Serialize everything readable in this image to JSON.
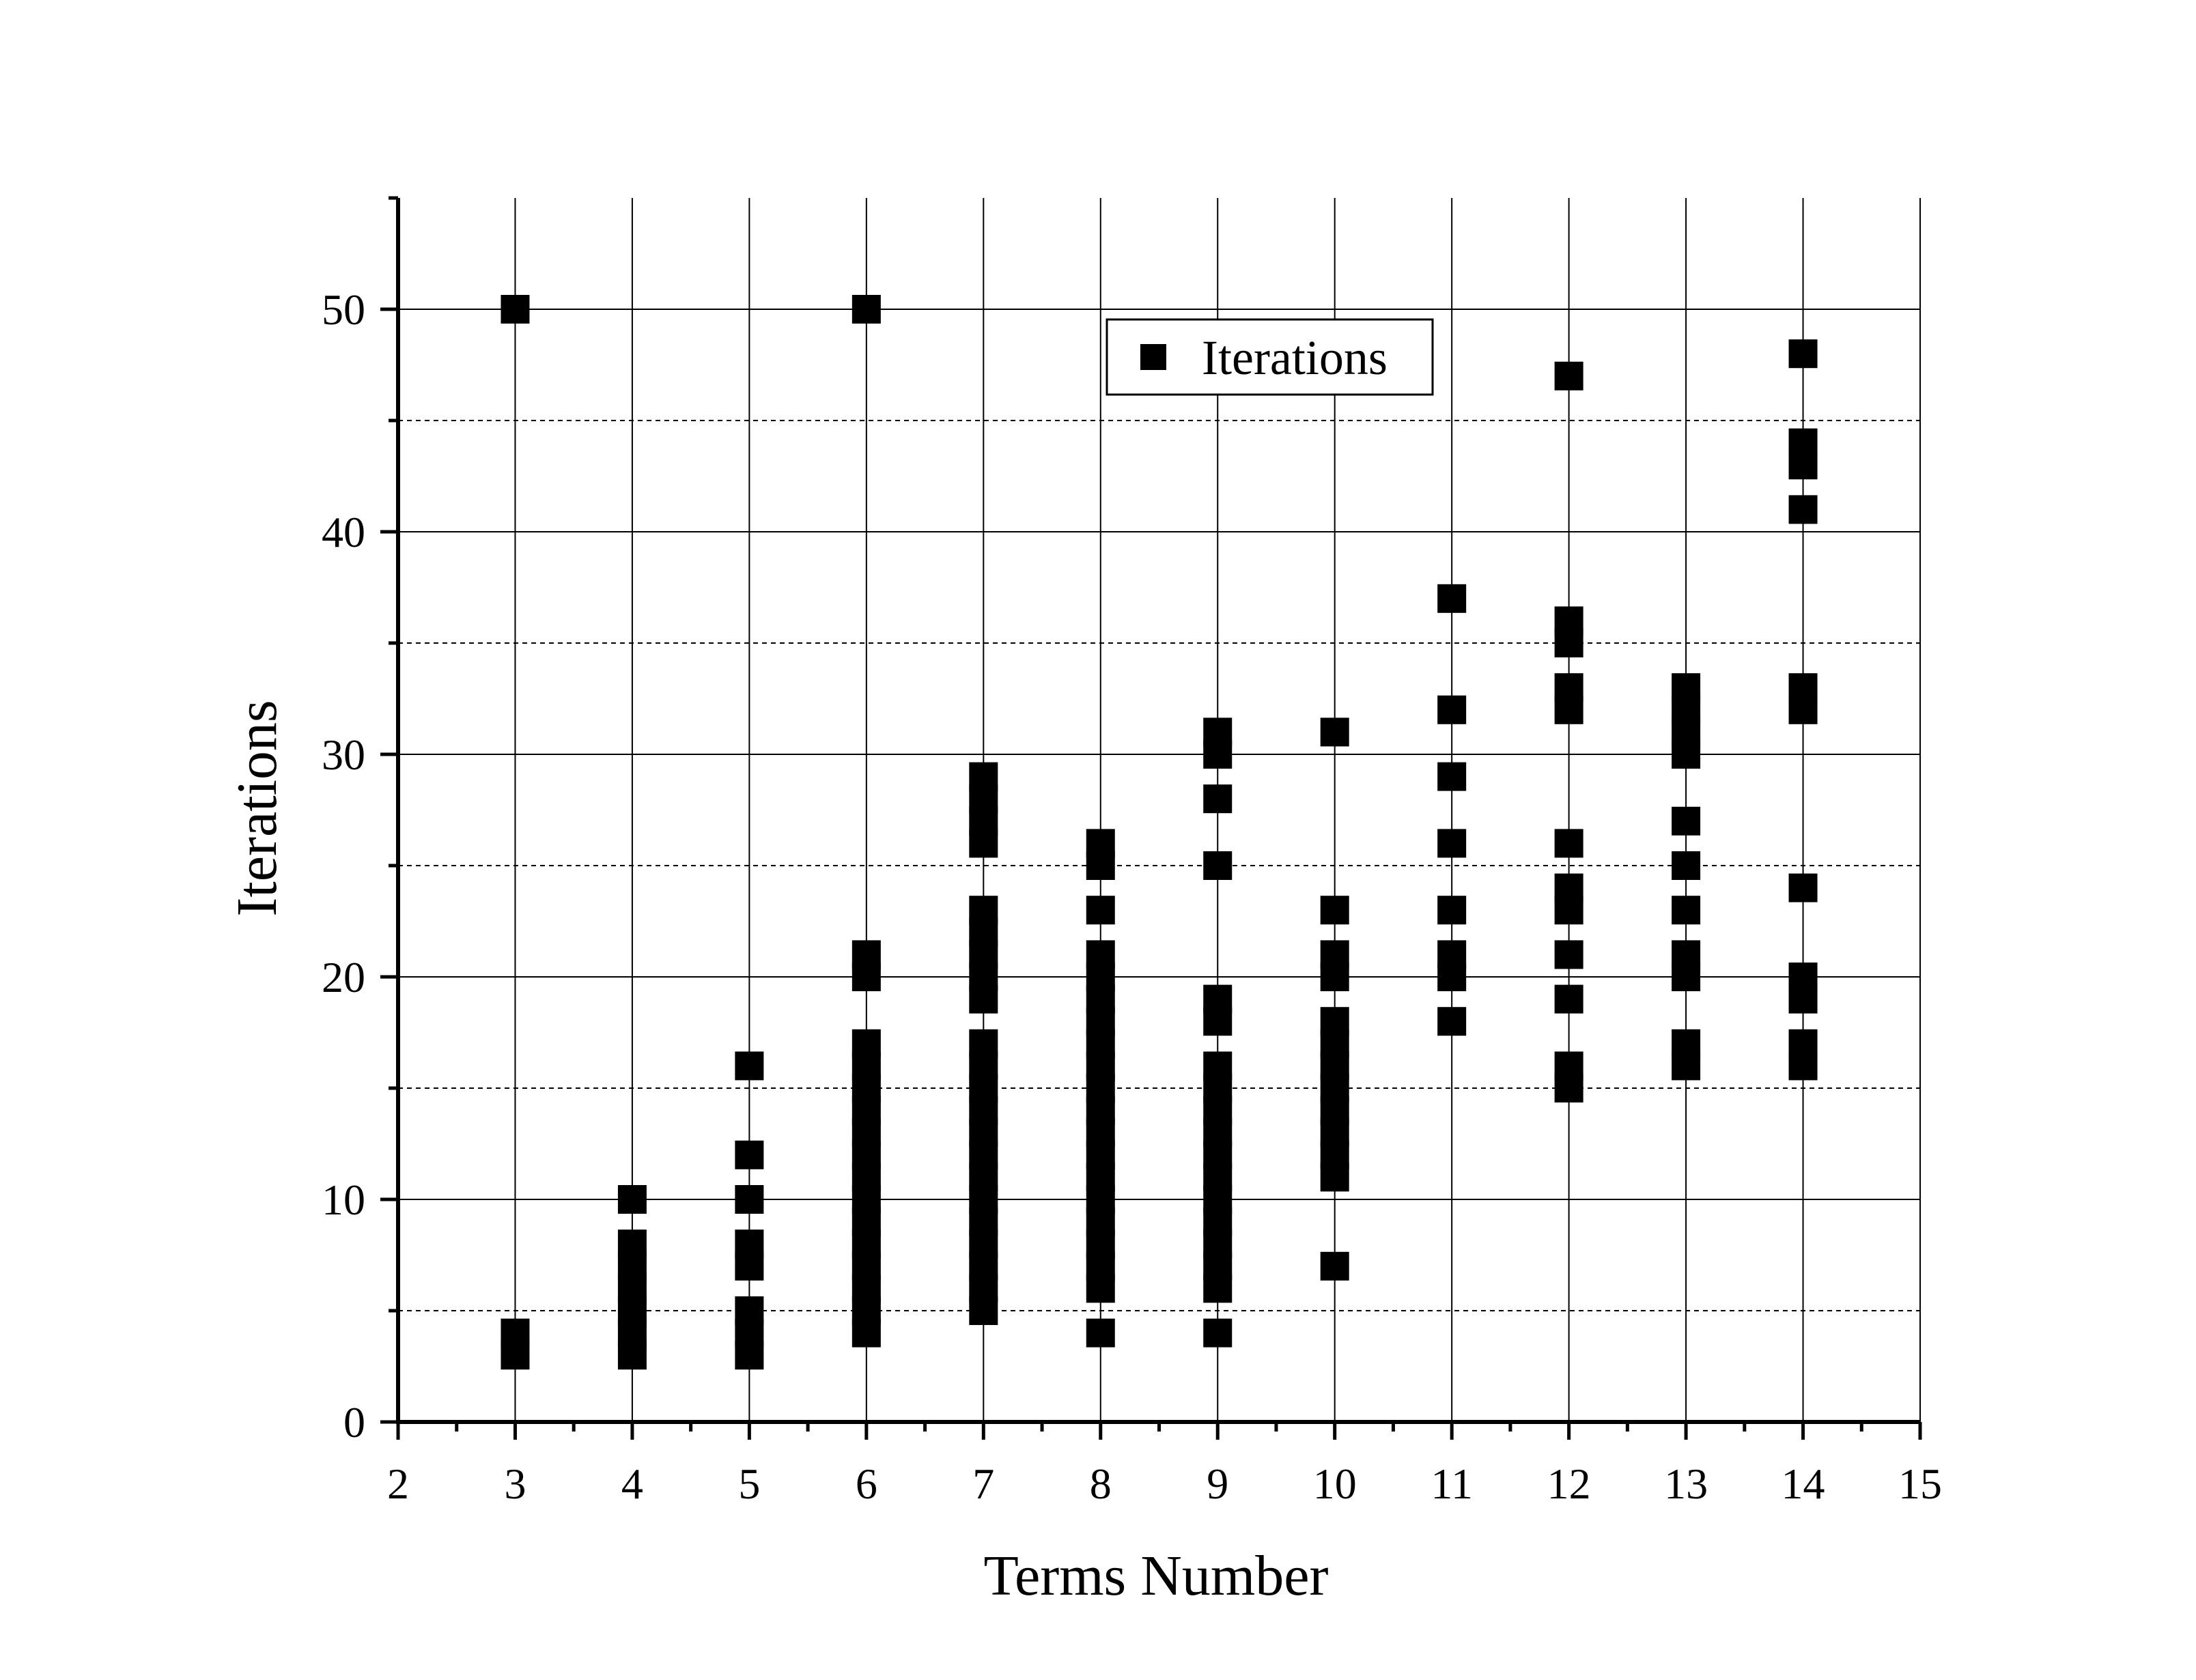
{
  "chart_data": {
    "type": "scatter",
    "xlabel": "Terms Number",
    "ylabel": "Iterations",
    "xlim": [
      2,
      15
    ],
    "ylim": [
      0,
      55
    ],
    "x_ticks": [
      2,
      3,
      4,
      5,
      6,
      7,
      8,
      9,
      10,
      11,
      12,
      13,
      14,
      15
    ],
    "y_ticks": [
      0,
      10,
      20,
      30,
      40,
      50
    ],
    "x_minor_step": 0.5,
    "y_minor_step": 5,
    "grid": {
      "major": "solid",
      "y_minor": "dashed"
    },
    "legend": {
      "position": "top-right",
      "entries": [
        "Iterations"
      ]
    },
    "marker": "square",
    "series": [
      {
        "name": "Iterations",
        "color": "#000000",
        "points": [
          {
            "x": 3,
            "y": [
              50,
              3,
              4
            ]
          },
          {
            "x": 4,
            "y": [
              10,
              3,
              4,
              5,
              6,
              7,
              8
            ]
          },
          {
            "x": 5,
            "y": [
              16,
              12,
              10,
              7,
              8,
              3,
              4,
              5
            ]
          },
          {
            "x": 6,
            "y": [
              50,
              20,
              21,
              4,
              5,
              6,
              7,
              8,
              9,
              10,
              11,
              12,
              13,
              14,
              15,
              16,
              17
            ]
          },
          {
            "x": 7,
            "y": [
              26,
              27,
              28,
              29,
              19,
              20,
              21,
              22,
              23,
              5,
              6,
              7,
              8,
              9,
              10,
              11,
              12,
              13,
              14,
              15,
              16,
              17
            ]
          },
          {
            "x": 8,
            "y": [
              25,
              26,
              23,
              4,
              6,
              7,
              8,
              9,
              10,
              11,
              12,
              13,
              14,
              15,
              16,
              17,
              18,
              19,
              20,
              21
            ]
          },
          {
            "x": 9,
            "y": [
              30,
              31,
              28,
              25,
              18,
              19,
              4,
              6,
              7,
              8,
              9,
              10,
              11,
              12,
              13,
              14,
              15,
              16
            ]
          },
          {
            "x": 10,
            "y": [
              31,
              23,
              20,
              21,
              7,
              11,
              12,
              13,
              14,
              15,
              16,
              17,
              18
            ]
          },
          {
            "x": 11,
            "y": [
              37,
              32,
              29,
              26,
              23,
              20,
              21,
              18
            ]
          },
          {
            "x": 12,
            "y": [
              47,
              35,
              36,
              32,
              33,
              26,
              23,
              24,
              21,
              19,
              15,
              16
            ]
          },
          {
            "x": 13,
            "y": [
              30,
              31,
              32,
              33,
              27,
              25,
              23,
              20,
              21,
              16,
              17
            ]
          },
          {
            "x": 14,
            "y": [
              48,
              43,
              44,
              41,
              32,
              33,
              24,
              19,
              20,
              16,
              17
            ]
          }
        ]
      }
    ]
  }
}
